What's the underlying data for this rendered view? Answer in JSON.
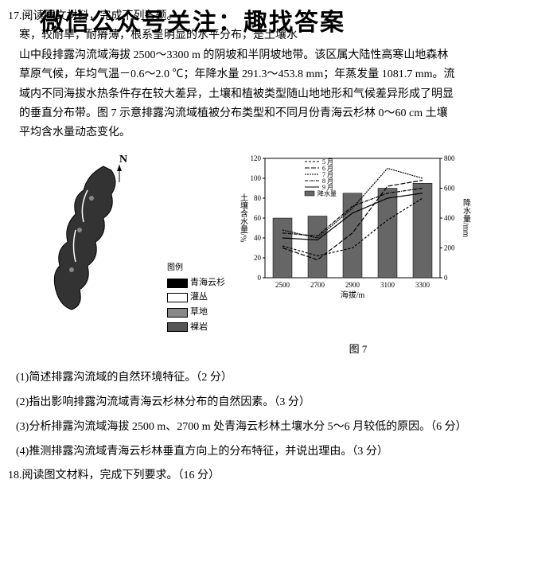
{
  "watermark": "微信公众号关注：趣找答案",
  "q17_num": "17.阅读图文材料，完成下列各题。",
  "para1": "寒，较耐旱，耐瘠薄，根系呈明显的水平分布，是土壤水",
  "para2": "山中段排露沟流域海拔 2500～3300 m 的阴坡和半阴坡地带。该区属大陆性高寒山地森林",
  "para3": "草原气候，年均气温－0.6～2.0 ℃；年降水量 291.3～453.8 mm；年蒸发量 1081.7 mm。流",
  "para4": "域内不同海拔水热条件存在较大差异，土壤和植被类型随山地地形和气候差异形成了明显",
  "para5": "的垂直分布带。图 7 示意排露沟流域植被分布类型和不同月份青海云杉林 0～60 cm 土壤",
  "para6": "平均含水量动态变化。",
  "compass": "N",
  "legend_title": "图例",
  "legend": {
    "a": "青海云杉",
    "b": "灌丛",
    "c": "草地",
    "d": "裸岩"
  },
  "legend_colors": {
    "a": "#000",
    "b": "#fff",
    "c": "#888",
    "d": "#555"
  },
  "chart": {
    "months": [
      "5 月",
      "6 月",
      "7 月",
      "8 月",
      "9 月"
    ],
    "bar_label": "降水量",
    "x_categories": [
      "2500",
      "2700",
      "2900",
      "3100",
      "3300"
    ],
    "x_label": "海拔/m",
    "y_left_label": "土壤含水量/%",
    "y_left_max": 120,
    "y_left_ticks": [
      0,
      20,
      40,
      60,
      80,
      100,
      120
    ],
    "y_right_label": "降水量/mm",
    "y_right_max": 800,
    "y_right_ticks": [
      0,
      200,
      400,
      600,
      800
    ],
    "bars": [
      60,
      62,
      85,
      90,
      95
    ],
    "line_5": [
      32,
      22,
      30,
      58,
      80
    ],
    "line_6": [
      30,
      18,
      45,
      92,
      98
    ],
    "line_7": [
      48,
      40,
      70,
      110,
      100
    ],
    "line_8": [
      45,
      42,
      72,
      85,
      90
    ],
    "line_9": [
      40,
      38,
      65,
      80,
      85
    ],
    "bar_color": "#666",
    "bg": "#fff",
    "axis_color": "#000",
    "line_styles": {
      "5": "3,2",
      "6": "6,2",
      "7": "2,1",
      "8": "4,1,1,1",
      "9": "1,0"
    }
  },
  "fig_caption": "图 7",
  "subq1": "(1)简述排露沟流域的自然环境特征。（2 分）",
  "subq2": "(2)指出影响排露沟流域青海云杉林分布的自然因素。（3 分）",
  "subq3": "(3)分析排露沟流域海拔 2500 m、2700 m 处青海云杉林土壤水分 5～6 月较低的原因。（6 分）",
  "subq4": "(4)推测排露沟流域青海云杉林垂直方向上的分布特征，并说出理由。（3 分）",
  "q18": "18.阅读图文材料，完成下列要求。（16 分）"
}
